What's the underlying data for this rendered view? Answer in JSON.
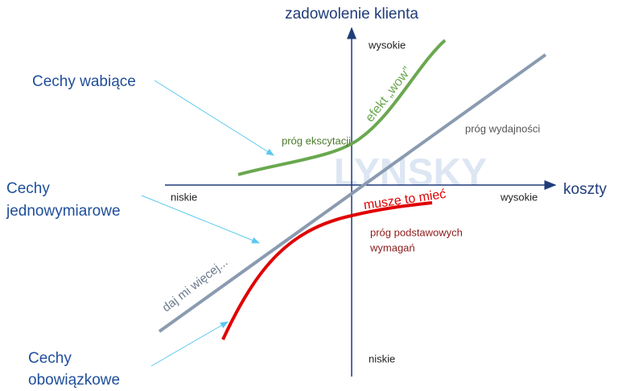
{
  "axes": {
    "y_title": "zadowolenie klienta",
    "y_high": "wysokie",
    "y_low": "niskie",
    "x_title": "koszty",
    "x_low": "niskie",
    "x_high": "wysokie"
  },
  "categories": {
    "attractive": [
      "Cechy wabiące"
    ],
    "one_dimensional": [
      "Cechy",
      "jednowymiarowe"
    ],
    "must_be": [
      "Cechy",
      "obowiązkowe"
    ]
  },
  "curves": {
    "attractive": {
      "threshold": "próg ekscytacji",
      "label": "efekt „wow”"
    },
    "one_dimensional": {
      "threshold": "próg wydajności",
      "label": "daj mi więcej..."
    },
    "must_be": {
      "threshold": [
        "próg podstawowych",
        "wymagań"
      ],
      "label": "muszę to mieć"
    }
  },
  "watermark": "LYNSKY"
}
